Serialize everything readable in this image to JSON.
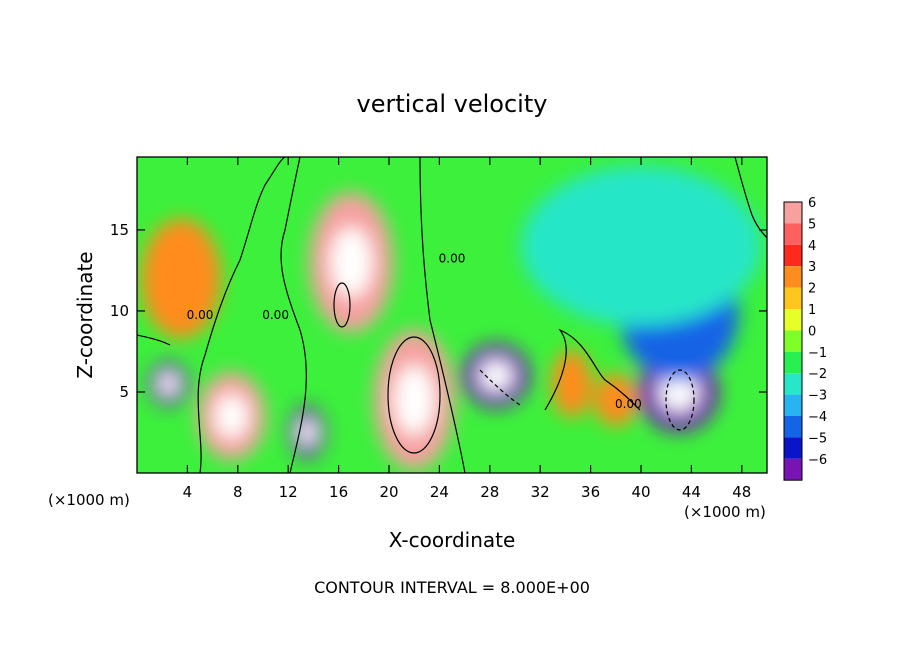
{
  "chart_data": {
    "type": "heatmap",
    "title": "vertical velocity",
    "xlabel": "X-coordinate",
    "ylabel": "Z-coordinate",
    "x_unit": "(×1000 m)",
    "footer": "CONTOUR INTERVAL = 8.000E+00",
    "xlim": [
      0,
      50
    ],
    "ylim": [
      0,
      19.5
    ],
    "x_ticks": [
      4,
      8,
      12,
      16,
      20,
      24,
      28,
      32,
      36,
      40,
      44,
      48
    ],
    "y_ticks": [
      5,
      10,
      15
    ],
    "colorbar": {
      "ticks": [
        6,
        5,
        4,
        3,
        2,
        1,
        0,
        -1,
        -2,
        -3,
        -4,
        -5,
        -6
      ],
      "colors": [
        "#f6a0a0",
        "#ff6060",
        "#ff2a1e",
        "#ff8c1e",
        "#ffc61e",
        "#e6ff28",
        "#7fff28",
        "#28f050",
        "#28e6c8",
        "#28b4f0",
        "#1464e6",
        "#0a14c8",
        "#7814b4"
      ],
      "range": [
        -6,
        6
      ]
    },
    "features": [
      {
        "x": 3.5,
        "z": 12,
        "value": 3
      },
      {
        "x": 2.5,
        "z": 5.5,
        "value": -6
      },
      {
        "x": 7.5,
        "z": 3.5,
        "value": 6
      },
      {
        "x": 13.5,
        "z": 2.5,
        "value": -6
      },
      {
        "x": 17,
        "z": 13,
        "value": 6
      },
      {
        "x": 22,
        "z": 4.5,
        "value": 6
      },
      {
        "x": 28.5,
        "z": 6,
        "value": -6
      },
      {
        "x": 34.5,
        "z": 5.5,
        "value": 3
      },
      {
        "x": 43,
        "z": 5,
        "value": -6
      },
      {
        "x": 43,
        "z": 10,
        "value": -4
      },
      {
        "x": 38,
        "z": 4.5,
        "value": 3
      },
      {
        "x": 40,
        "z": 14,
        "value": -2
      }
    ],
    "contour_labels": [
      {
        "x": 5,
        "z": 9.5,
        "text": "0.00"
      },
      {
        "x": 11,
        "z": 9.5,
        "text": "0.00"
      },
      {
        "x": 25,
        "z": 13,
        "text": "0.00"
      },
      {
        "x": 39,
        "z": 4,
        "text": "0.00"
      }
    ]
  }
}
